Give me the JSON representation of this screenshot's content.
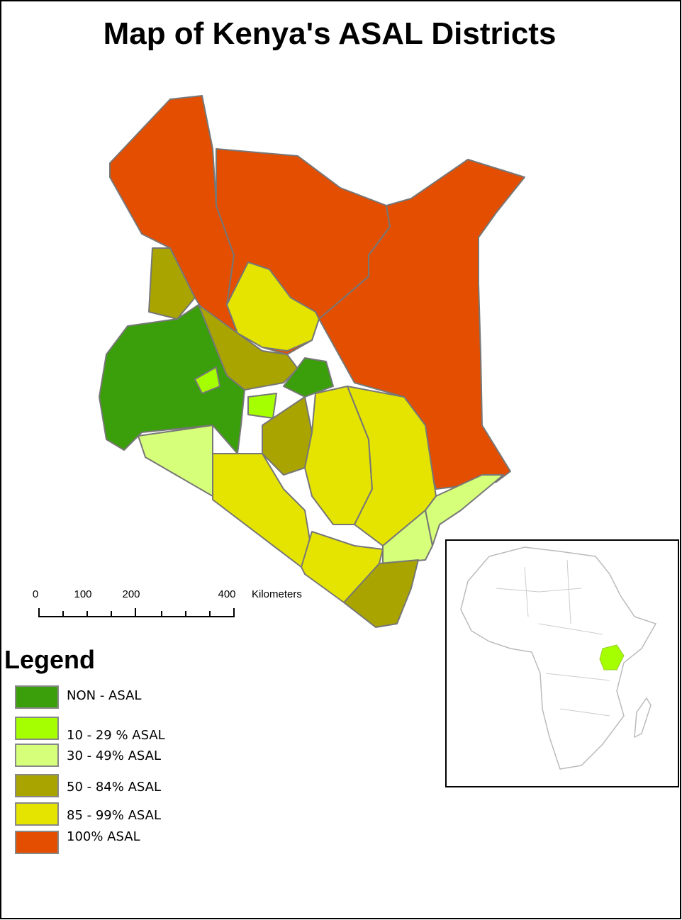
{
  "title": "Map of Kenya's ASAL Districts",
  "scale_bar": {
    "labels": [
      "0",
      "100",
      "200",
      "400"
    ],
    "unit": "Kilometers"
  },
  "legend": {
    "title": "Legend",
    "items": [
      {
        "label": "NON - ASAL",
        "color": "#3a9f0a"
      },
      {
        "label": "10 - 29 % ASAL",
        "color": "#a6ff00"
      },
      {
        "label": "30 - 49% ASAL",
        "color": "#d6ff7a"
      },
      {
        "label": "50 - 84% ASAL",
        "color": "#a9a400"
      },
      {
        "label": "85 - 99% ASAL",
        "color": "#e5e400"
      },
      {
        "label": "100% ASAL",
        "color": "#e34e00"
      }
    ]
  }
}
